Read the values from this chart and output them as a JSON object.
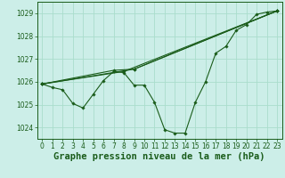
{
  "title": "Graphe pression niveau de la mer (hPa)",
  "background_color": "#cceee8",
  "grid_color": "#aaddcc",
  "line_color": "#1a5c1a",
  "marker_color": "#1a5c1a",
  "xlim": [
    -0.5,
    23.5
  ],
  "ylim": [
    1023.5,
    1029.5
  ],
  "yticks": [
    1024,
    1025,
    1026,
    1027,
    1028,
    1029
  ],
  "xticks": [
    0,
    1,
    2,
    3,
    4,
    5,
    6,
    7,
    8,
    9,
    10,
    11,
    12,
    13,
    14,
    15,
    16,
    17,
    18,
    19,
    20,
    21,
    22,
    23
  ],
  "series": [
    {
      "x": [
        0,
        1,
        2,
        3,
        4,
        5,
        6,
        7,
        8,
        9,
        10,
        11,
        12,
        13,
        14,
        15,
        16,
        17,
        18,
        19,
        20,
        21,
        22,
        23
      ],
      "y": [
        1025.9,
        1025.75,
        1025.65,
        1025.05,
        1024.85,
        1025.45,
        1026.05,
        1026.45,
        1026.4,
        1025.85,
        1025.85,
        1025.1,
        1023.9,
        1023.75,
        1023.75,
        1025.1,
        1026.0,
        1027.25,
        1027.55,
        1028.25,
        1028.5,
        1028.95,
        1029.05,
        1029.1
      ]
    },
    {
      "x": [
        0,
        9,
        23
      ],
      "y": [
        1025.9,
        1026.55,
        1029.1
      ]
    },
    {
      "x": [
        0,
        7,
        9,
        23
      ],
      "y": [
        1025.9,
        1026.5,
        1026.55,
        1029.1
      ]
    },
    {
      "x": [
        0,
        8,
        23
      ],
      "y": [
        1025.9,
        1026.45,
        1029.1
      ]
    }
  ],
  "title_fontsize": 7.5,
  "tick_fontsize": 5.5
}
